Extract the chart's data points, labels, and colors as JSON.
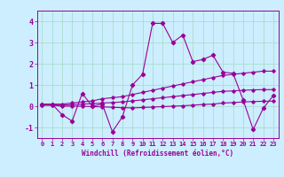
{
  "xlabel": "Windchill (Refroidissement éolien,°C)",
  "x_values": [
    0,
    1,
    2,
    3,
    4,
    5,
    6,
    7,
    8,
    9,
    10,
    11,
    12,
    13,
    14,
    15,
    16,
    17,
    18,
    19,
    20,
    21,
    22,
    23
  ],
  "main_line": [
    0.1,
    0.1,
    -0.4,
    -0.7,
    0.6,
    0.0,
    0.1,
    -1.2,
    -0.5,
    1.0,
    1.5,
    3.9,
    3.9,
    3.0,
    3.35,
    2.1,
    2.2,
    2.4,
    1.6,
    1.55,
    0.3,
    -1.1,
    -0.1,
    0.5
  ],
  "upper_line": [
    0.1,
    0.1,
    0.1,
    0.15,
    0.2,
    0.25,
    0.35,
    0.4,
    0.45,
    0.55,
    0.65,
    0.75,
    0.85,
    0.95,
    1.05,
    1.15,
    1.25,
    1.35,
    1.45,
    1.5,
    1.55,
    1.6,
    1.65,
    1.65
  ],
  "mid_line": [
    0.05,
    0.05,
    0.05,
    0.07,
    0.1,
    0.12,
    0.15,
    0.17,
    0.2,
    0.25,
    0.3,
    0.35,
    0.4,
    0.45,
    0.5,
    0.55,
    0.6,
    0.65,
    0.7,
    0.72,
    0.75,
    0.77,
    0.78,
    0.78
  ],
  "lower_line": [
    0.05,
    0.05,
    0.0,
    0.0,
    0.0,
    -0.02,
    -0.03,
    -0.05,
    -0.07,
    -0.08,
    -0.06,
    -0.04,
    -0.02,
    0.0,
    0.02,
    0.05,
    0.08,
    0.1,
    0.15,
    0.17,
    0.2,
    0.22,
    0.23,
    0.24
  ],
  "line_color": "#990099",
  "bg_color": "#cceeff",
  "grid_color": "#aaddcc",
  "ylim": [
    -1.5,
    4.5
  ],
  "yticks": [
    -1,
    0,
    1,
    2,
    3,
    4
  ],
  "xlim": [
    -0.5,
    23.5
  ],
  "tick_fontsize": 5.0,
  "label_fontsize": 5.5
}
